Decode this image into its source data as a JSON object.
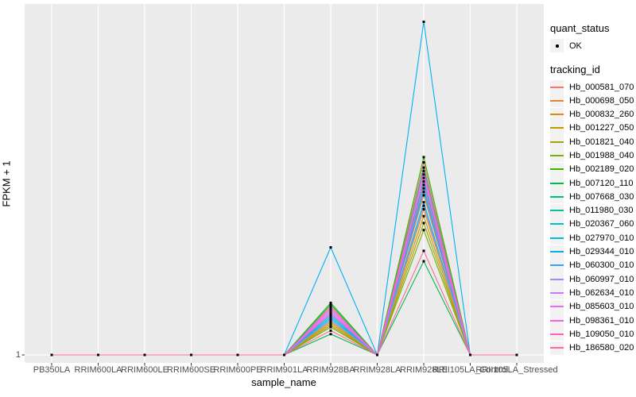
{
  "style": {
    "background": "#FFFFFF",
    "panel_bg": "#EBEBEB",
    "grid_color": "#FFFFFF",
    "tick_mark_color": "#333333",
    "tick_label_color": "#4D4D4D",
    "axis_title_color": "#000000",
    "point_color": "#000000",
    "legend_key_bg": "#F2F2F2"
  },
  "chart_data": {
    "type": "line",
    "title": "",
    "xlabel": "sample_name",
    "ylabel": "FPKM + 1",
    "categories": [
      "PB350LA",
      "RRIM600LA",
      "RRIM600LE",
      "RRIM600SE",
      "RRIM600PE",
      "RRIM901LA",
      "RRIM928BA",
      "RRIM928LA",
      "RRIM928LE",
      "RRII105LA_Control",
      "RRII105LA_Stressed"
    ],
    "y_ticks": [
      "1"
    ],
    "y_note": "only the y tick '1' is labeled; series values are stored as estimated fraction of panel height above the y=1 baseline (0 = flat at 1)",
    "grid": "white major gridlines on gray panel (ggplot2 style)",
    "legend_position": "right",
    "point_marker": "small black square at every sample for every series (quant_status = OK)",
    "series": [
      {
        "name": "Hb_000581_070",
        "color": "#F8766D",
        "values": [
          0,
          0,
          0,
          0,
          0,
          0,
          0.14,
          0,
          0.555,
          0,
          0
        ]
      },
      {
        "name": "Hb_000698_050",
        "color": "#EA8331",
        "values": [
          0,
          0,
          0,
          0,
          0,
          0,
          0.1,
          0,
          0.46,
          0,
          0
        ]
      },
      {
        "name": "Hb_000832_260",
        "color": "#D89000",
        "values": [
          0,
          0,
          0,
          0,
          0,
          0,
          0.09,
          0,
          0.42,
          0,
          0
        ]
      },
      {
        "name": "Hb_001227_050",
        "color": "#C09B00",
        "values": [
          0,
          0,
          0,
          0,
          0,
          0,
          0.095,
          0,
          0.4,
          0,
          0
        ]
      },
      {
        "name": "Hb_001821_040",
        "color": "#A3A500",
        "values": [
          0,
          0,
          0,
          0,
          0,
          0,
          0.085,
          0,
          0.38,
          0,
          0
        ]
      },
      {
        "name": "Hb_001988_040",
        "color": "#7CAE00",
        "values": [
          0,
          0,
          0,
          0,
          0,
          0,
          0.08,
          0,
          0.36,
          0,
          0
        ]
      },
      {
        "name": "Hb_002189_020",
        "color": "#39B600",
        "values": [
          0,
          0,
          0,
          0,
          0,
          0,
          0.15,
          0,
          0.57,
          0,
          0
        ]
      },
      {
        "name": "Hb_007120_110",
        "color": "#00BB4E",
        "values": [
          0,
          0,
          0,
          0,
          0,
          0,
          0.06,
          0,
          0.27,
          0,
          0
        ]
      },
      {
        "name": "Hb_007668_030",
        "color": "#00BF7D",
        "values": [
          0,
          0,
          0,
          0,
          0,
          0,
          0.145,
          0,
          0.54,
          0,
          0
        ]
      },
      {
        "name": "Hb_011980_030",
        "color": "#00C1A3",
        "values": [
          0,
          0,
          0,
          0,
          0,
          0,
          0.12,
          0,
          0.5,
          0,
          0
        ]
      },
      {
        "name": "Hb_020367_060",
        "color": "#00BFC4",
        "values": [
          0,
          0,
          0,
          0,
          0,
          0,
          0.11,
          0,
          0.48,
          0,
          0
        ]
      },
      {
        "name": "Hb_027970_010",
        "color": "#00BAE0",
        "values": [
          0,
          0,
          0,
          0,
          0,
          0,
          0.105,
          0,
          0.44,
          0,
          0
        ]
      },
      {
        "name": "Hb_029344_010",
        "color": "#00B0F6",
        "values": [
          0,
          0,
          0,
          0,
          0,
          0,
          0.31,
          0,
          0.96,
          0,
          0
        ]
      },
      {
        "name": "Hb_060300_010",
        "color": "#35A2FF",
        "values": [
          0,
          0,
          0,
          0,
          0,
          0,
          0.115,
          0,
          0.47,
          0,
          0
        ]
      },
      {
        "name": "Hb_060997_010",
        "color": "#9590FF",
        "values": [
          0,
          0,
          0,
          0,
          0,
          0,
          0.1,
          0,
          0.43,
          0,
          0
        ]
      },
      {
        "name": "Hb_062634_010",
        "color": "#C77CFF",
        "values": [
          0,
          0,
          0,
          0,
          0,
          0,
          0.13,
          0,
          0.52,
          0,
          0
        ]
      },
      {
        "name": "Hb_085603_010",
        "color": "#E76BF3",
        "values": [
          0,
          0,
          0,
          0,
          0,
          0,
          0.125,
          0,
          0.51,
          0,
          0
        ]
      },
      {
        "name": "Hb_098361_010",
        "color": "#FA62DB",
        "values": [
          0,
          0,
          0,
          0,
          0,
          0,
          0.12,
          0,
          0.49,
          0,
          0
        ]
      },
      {
        "name": "Hb_109050_010",
        "color": "#FF62BC",
        "values": [
          0,
          0,
          0,
          0,
          0,
          0,
          0.135,
          0,
          0.53,
          0,
          0
        ]
      },
      {
        "name": "Hb_186580_020",
        "color": "#FF6A98",
        "values": [
          0,
          0,
          0,
          0,
          0,
          0,
          0.07,
          0,
          0.3,
          0,
          0
        ]
      }
    ]
  },
  "legend": {
    "quant_status_title": "quant_status",
    "quant_status_item": "OK",
    "tracking_id_title": "tracking_id"
  }
}
